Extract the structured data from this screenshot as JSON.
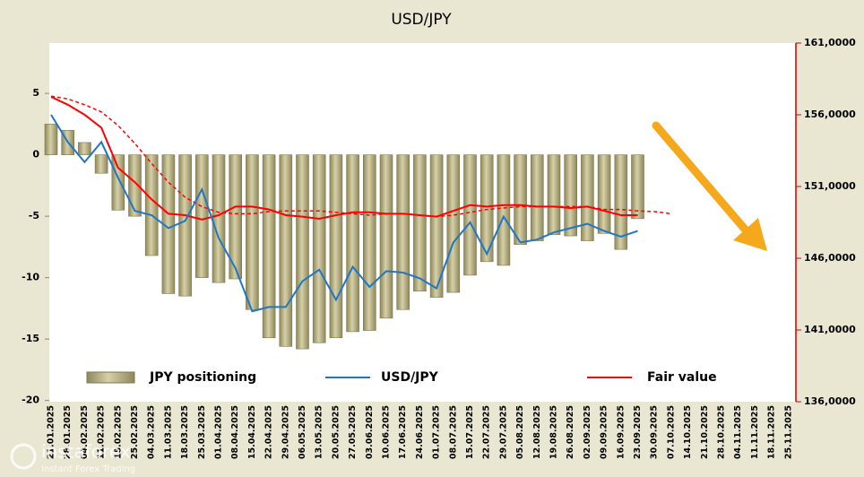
{
  "chart_data": {
    "type": "combo",
    "title": "USD/JPY",
    "categories": [
      "21.01.2025",
      "28.01.2025",
      "04.02.2025",
      "11.02.2025",
      "18.02.2025",
      "25.02.2025",
      "04.03.2025",
      "11.03.2025",
      "18.03.2025",
      "25.03.2025",
      "01.04.2025",
      "08.04.2025",
      "15.04.2025",
      "22.04.2025",
      "29.04.2025",
      "06.05.2025",
      "13.05.2025",
      "20.05.2025",
      "27.05.2025",
      "03.06.2025",
      "10.06.2025",
      "17.06.2025",
      "24.06.2025",
      "01.07.2025",
      "08.07.2025",
      "15.07.2025",
      "22.07.2025",
      "29.07.2025",
      "05.08.2025",
      "12.08.2025",
      "19.08.2025",
      "26.08.2025",
      "02.09.2025",
      "09.09.2025",
      "16.09.2025",
      "23.09.2025",
      "30.09.2025",
      "07.10.2025",
      "14.10.2025",
      "21.10.2025",
      "28.10.2025",
      "04.11.2025",
      "11.11.2025",
      "18.11.2025",
      "25.11.2025"
    ],
    "series": [
      {
        "name": "JPY positioning",
        "type": "bar",
        "axis": "y",
        "color": "#b3ac7e",
        "values": [
          2.5,
          2,
          1,
          -1.5,
          -4.5,
          -5,
          -8.2,
          -11.3,
          -11.5,
          -10,
          -10.4,
          -10.1,
          -12.6,
          -14.9,
          -15.6,
          -15.8,
          -15.3,
          -14.9,
          -14.4,
          -14.3,
          -13.3,
          -12.6,
          -11.1,
          -11.6,
          -11.2,
          -9.8,
          -8.7,
          -9,
          -7.3,
          -7,
          -6.5,
          -6.6,
          -7,
          -6.4,
          -7.7,
          -5.2,
          null,
          null,
          null,
          null,
          null,
          null,
          null,
          null,
          null
        ]
      },
      {
        "name": "USD/JPY",
        "type": "line",
        "axis": "y2",
        "color": "#1f77c4",
        "values": [
          156,
          154.1,
          152.7,
          154.1,
          151.6,
          149.3,
          149,
          148.1,
          148.6,
          150.8,
          147.4,
          145.3,
          142.3,
          142.6,
          142.6,
          144.4,
          145.2,
          143.1,
          145.4,
          144,
          145.1,
          145,
          144.6,
          143.9,
          147.1,
          148.5,
          146.3,
          148.9,
          147.1,
          147.3,
          147.8,
          148.1,
          148.4,
          147.9,
          147.5,
          147.9,
          null,
          null,
          null,
          null,
          null,
          null,
          null,
          null,
          null
        ]
      },
      {
        "name": "Fair value",
        "type": "line",
        "axis": "y2",
        "color": "#ff0000",
        "values": [
          157.25,
          156.7,
          156,
          155.1,
          152.3,
          151.3,
          150.1,
          149.1,
          149,
          148.7,
          149,
          149.6,
          149.6,
          149.4,
          149,
          148.9,
          148.75,
          149,
          149.2,
          149.2,
          149.1,
          149.1,
          149,
          148.9,
          149.3,
          149.7,
          149.6,
          149.7,
          149.7,
          149.6,
          149.6,
          149.5,
          149.6,
          149.3,
          149,
          149,
          null,
          null,
          null,
          null,
          null,
          null,
          null,
          null,
          null
        ]
      },
      {
        "type": "line",
        "axis": "y2",
        "color": "#ff0000",
        "dash": true,
        "values": [
          157.3,
          157.1,
          156.7,
          156.2,
          155.25,
          154,
          152.6,
          151.3,
          150.25,
          149.6,
          149.2,
          149.1,
          149.1,
          149.25,
          149.3,
          149.3,
          149.3,
          149.2,
          149.1,
          149,
          149.1,
          149.1,
          149,
          148.9,
          149,
          149.2,
          149.4,
          149.5,
          149.6,
          149.6,
          149.6,
          149.6,
          149.6,
          149.4,
          149.4,
          149.3,
          149.25,
          149.1,
          null,
          null,
          null,
          null,
          null,
          null,
          null
        ]
      }
    ],
    "ylim": [
      -20.1,
      9.1
    ],
    "yticks": [
      5,
      0,
      -5,
      -10,
      -15,
      -20
    ],
    "y2lim": [
      136,
      161
    ],
    "y2ticks": [
      {
        "value": 161,
        "label": "161,0000"
      },
      {
        "value": 156,
        "label": "156,0000"
      },
      {
        "value": 151,
        "label": "151,0000"
      },
      {
        "value": 146,
        "label": "146,0000"
      },
      {
        "value": 141,
        "label": "141,0000"
      },
      {
        "value": 136,
        "label": "136,0000"
      }
    ],
    "watermark": {
      "brand": "instaforex",
      "tagline": "Instant Forex Trading"
    }
  }
}
